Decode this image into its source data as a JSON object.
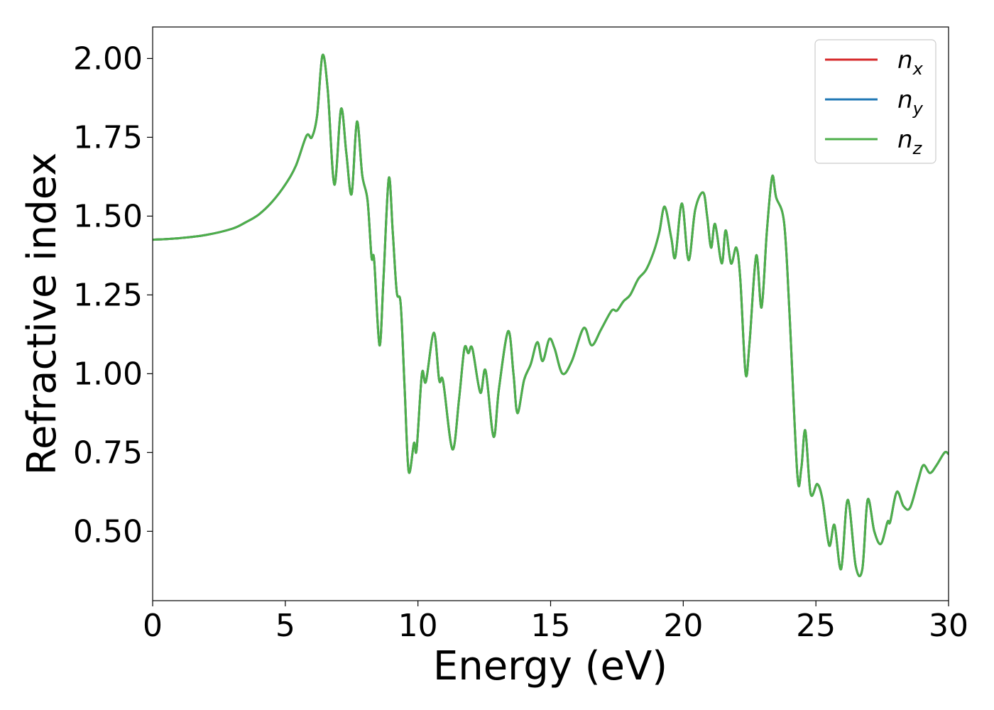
{
  "chart_data": {
    "type": "line",
    "title": "",
    "xlabel": "Energy (eV)",
    "ylabel": "Refractive index",
    "xlim": [
      0,
      30
    ],
    "ylim": [
      0.28,
      2.1
    ],
    "xticks": [
      "0",
      "5",
      "10",
      "15",
      "20",
      "25",
      "30"
    ],
    "yticks": [
      "0.50",
      "0.75",
      "1.00",
      "1.25",
      "1.50",
      "1.75",
      "2.00"
    ],
    "grid": false,
    "legend_position": "top-right",
    "series": [
      {
        "name": "n_x",
        "label_base": "n",
        "label_sub": "x",
        "color": "#d62728"
      },
      {
        "name": "n_y",
        "label_base": "n",
        "label_sub": "y",
        "color": "#1f77b4"
      },
      {
        "name": "n_z",
        "label_base": "n",
        "label_sub": "z",
        "color": "#4daf4a"
      }
    ],
    "points": [
      [
        0,
        1.425
      ],
      [
        1,
        1.43
      ],
      [
        2,
        1.44
      ],
      [
        3,
        1.46
      ],
      [
        3.5,
        1.48
      ],
      [
        4,
        1.505
      ],
      [
        4.5,
        1.545
      ],
      [
        5,
        1.6
      ],
      [
        5.4,
        1.66
      ],
      [
        5.8,
        1.755
      ],
      [
        6.0,
        1.75
      ],
      [
        6.2,
        1.82
      ],
      [
        6.4,
        2.01
      ],
      [
        6.6,
        1.9
      ],
      [
        6.85,
        1.6
      ],
      [
        7.1,
        1.84
      ],
      [
        7.3,
        1.7
      ],
      [
        7.5,
        1.57
      ],
      [
        7.7,
        1.8
      ],
      [
        7.9,
        1.63
      ],
      [
        8.1,
        1.55
      ],
      [
        8.25,
        1.37
      ],
      [
        8.35,
        1.36
      ],
      [
        8.55,
        1.09
      ],
      [
        8.7,
        1.3
      ],
      [
        8.9,
        1.62
      ],
      [
        9.05,
        1.45
      ],
      [
        9.2,
        1.26
      ],
      [
        9.35,
        1.22
      ],
      [
        9.5,
        0.95
      ],
      [
        9.65,
        0.69
      ],
      [
        9.85,
        0.78
      ],
      [
        9.95,
        0.76
      ],
      [
        10.15,
        1.0
      ],
      [
        10.3,
        0.975
      ],
      [
        10.6,
        1.13
      ],
      [
        10.8,
        0.98
      ],
      [
        10.95,
        0.975
      ],
      [
        11.3,
        0.76
      ],
      [
        11.55,
        0.92
      ],
      [
        11.75,
        1.08
      ],
      [
        11.9,
        1.065
      ],
      [
        12.05,
        1.08
      ],
      [
        12.35,
        0.94
      ],
      [
        12.55,
        1.01
      ],
      [
        12.85,
        0.8
      ],
      [
        13.05,
        0.95
      ],
      [
        13.4,
        1.135
      ],
      [
        13.6,
        1.0
      ],
      [
        13.75,
        0.875
      ],
      [
        14.0,
        0.98
      ],
      [
        14.25,
        1.03
      ],
      [
        14.5,
        1.1
      ],
      [
        14.7,
        1.04
      ],
      [
        14.95,
        1.11
      ],
      [
        15.15,
        1.08
      ],
      [
        15.45,
        1.0
      ],
      [
        15.8,
        1.04
      ],
      [
        16.25,
        1.145
      ],
      [
        16.55,
        1.09
      ],
      [
        16.9,
        1.14
      ],
      [
        17.3,
        1.2
      ],
      [
        17.5,
        1.2
      ],
      [
        17.75,
        1.23
      ],
      [
        18.0,
        1.25
      ],
      [
        18.3,
        1.3
      ],
      [
        18.6,
        1.33
      ],
      [
        18.9,
        1.39
      ],
      [
        19.1,
        1.45
      ],
      [
        19.3,
        1.53
      ],
      [
        19.55,
        1.43
      ],
      [
        19.7,
        1.37
      ],
      [
        19.95,
        1.54
      ],
      [
        20.2,
        1.36
      ],
      [
        20.45,
        1.52
      ],
      [
        20.75,
        1.575
      ],
      [
        20.9,
        1.5
      ],
      [
        21.05,
        1.4
      ],
      [
        21.2,
        1.475
      ],
      [
        21.45,
        1.35
      ],
      [
        21.6,
        1.455
      ],
      [
        21.8,
        1.35
      ],
      [
        22.0,
        1.4
      ],
      [
        22.15,
        1.3
      ],
      [
        22.35,
        1.0
      ],
      [
        22.5,
        1.1
      ],
      [
        22.75,
        1.375
      ],
      [
        22.95,
        1.21
      ],
      [
        23.15,
        1.45
      ],
      [
        23.35,
        1.625
      ],
      [
        23.5,
        1.56
      ],
      [
        23.8,
        1.48
      ],
      [
        24.0,
        1.2
      ],
      [
        24.3,
        0.68
      ],
      [
        24.45,
        0.7
      ],
      [
        24.6,
        0.82
      ],
      [
        24.8,
        0.62
      ],
      [
        25.05,
        0.65
      ],
      [
        25.25,
        0.6
      ],
      [
        25.5,
        0.455
      ],
      [
        25.7,
        0.52
      ],
      [
        25.95,
        0.38
      ],
      [
        26.2,
        0.6
      ],
      [
        26.5,
        0.39
      ],
      [
        26.75,
        0.38
      ],
      [
        26.95,
        0.6
      ],
      [
        27.2,
        0.5
      ],
      [
        27.45,
        0.46
      ],
      [
        27.7,
        0.53
      ],
      [
        27.8,
        0.53
      ],
      [
        28.05,
        0.625
      ],
      [
        28.3,
        0.58
      ],
      [
        28.55,
        0.575
      ],
      [
        28.85,
        0.66
      ],
      [
        29.05,
        0.71
      ],
      [
        29.3,
        0.685
      ],
      [
        29.55,
        0.71
      ],
      [
        29.85,
        0.75
      ],
      [
        30,
        0.745
      ]
    ]
  }
}
